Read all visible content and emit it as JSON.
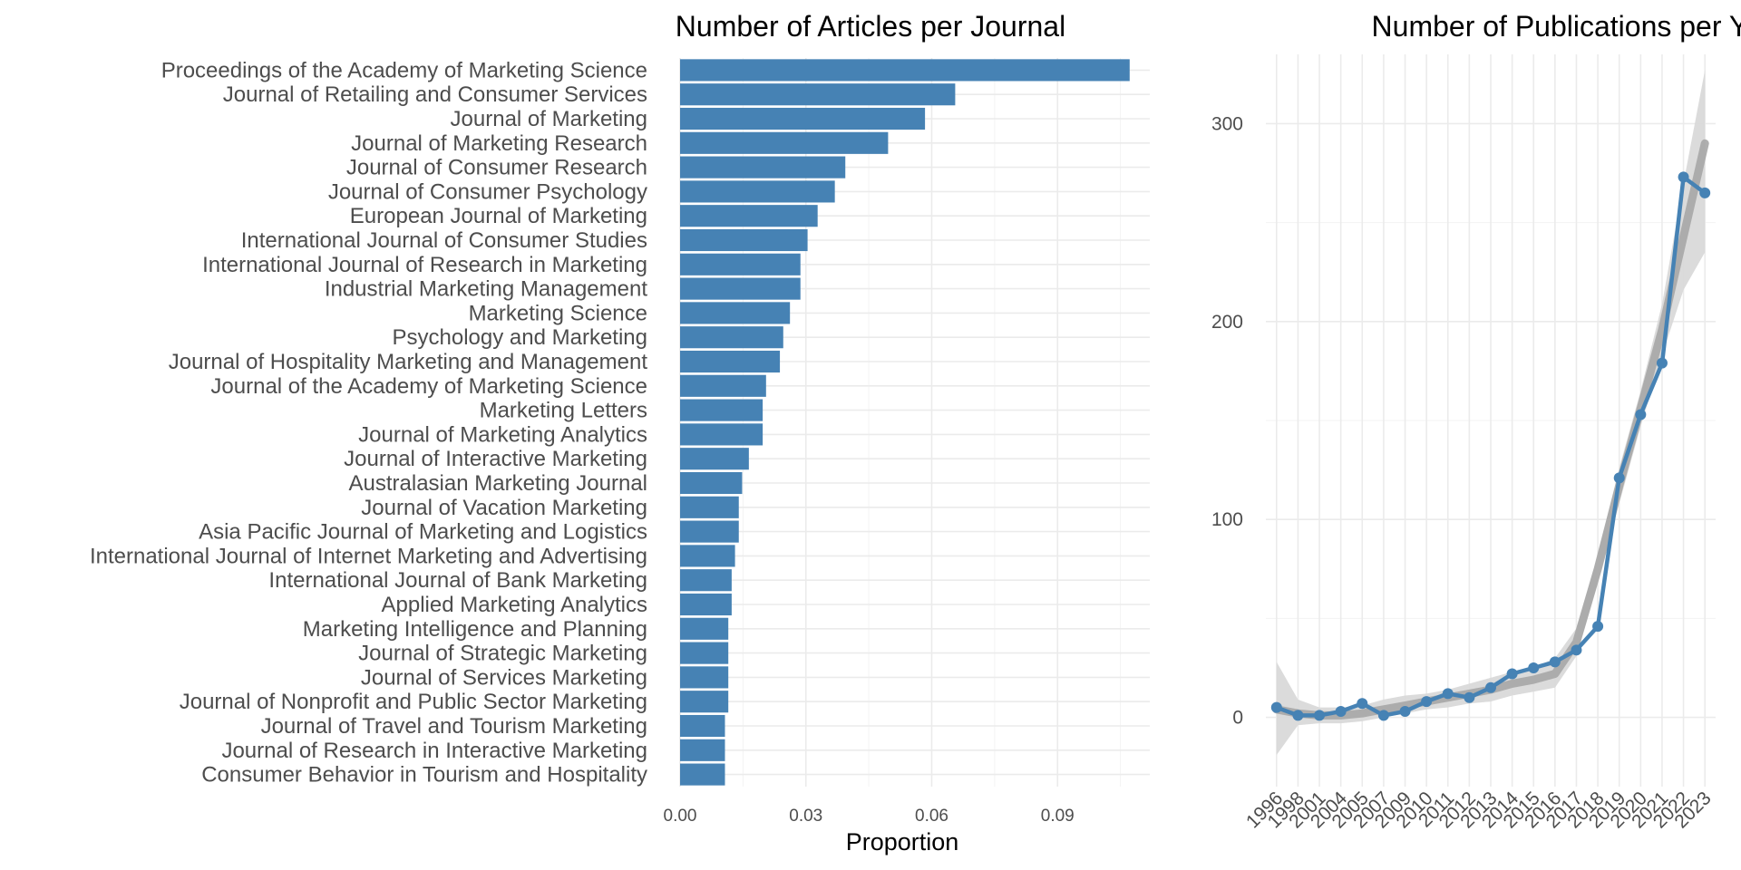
{
  "chart_data": [
    {
      "type": "bar",
      "orientation": "horizontal",
      "title": "Number of Articles per Journal",
      "xlabel": "Proportion",
      "ylabel": "",
      "xlim": [
        0,
        0.112
      ],
      "xticks": [
        "0.00",
        "0.03",
        "0.06",
        "0.09"
      ],
      "xtick_values": [
        0,
        0.03,
        0.06,
        0.09
      ],
      "grid": true,
      "bar_color": "#4682b4",
      "categories": [
        "Proceedings of the Academy of Marketing Science",
        "Journal of Retailing and Consumer Services",
        "Journal of Marketing",
        "Journal of Marketing Research",
        "Journal of Consumer Research",
        "Journal of Consumer Psychology",
        "European Journal of Marketing",
        "International Journal of Consumer Studies",
        "International Journal of Research in Marketing",
        "Industrial Marketing Management",
        "Marketing Science",
        "Psychology and Marketing",
        "Journal of Hospitality Marketing and Management",
        "Journal of the Academy of Marketing Science",
        "Marketing Letters",
        "Journal of Marketing Analytics",
        "Journal of Interactive Marketing",
        "Australasian Marketing Journal",
        "Journal of Vacation Marketing",
        "Asia Pacific Journal of Marketing and Logistics",
        "International Journal of Internet Marketing and Advertising",
        "International Journal of Bank Marketing",
        "Applied Marketing Analytics",
        "Marketing Intelligence and Planning",
        "Journal of Strategic Marketing",
        "Journal of Services Marketing",
        "Journal of Nonprofit and Public Sector Marketing",
        "Journal of Travel and Tourism Marketing",
        "Journal of Research in Interactive Marketing",
        "Consumer Behavior in Tourism and Hospitality"
      ],
      "values": [
        0.1072,
        0.0656,
        0.0584,
        0.0496,
        0.0394,
        0.0369,
        0.0328,
        0.0304,
        0.0287,
        0.0287,
        0.0262,
        0.0246,
        0.0238,
        0.0205,
        0.0197,
        0.0197,
        0.0164,
        0.0148,
        0.014,
        0.014,
        0.0131,
        0.0123,
        0.0123,
        0.0115,
        0.0115,
        0.0115,
        0.0115,
        0.0107,
        0.0107,
        0.0107
      ]
    },
    {
      "type": "line",
      "title": "Number of Publications per Year",
      "xlabel": "",
      "ylabel": "",
      "ylim": [
        -35,
        335
      ],
      "yticks": [
        "0",
        "100",
        "200",
        "300"
      ],
      "ytick_values": [
        0,
        100,
        200,
        300
      ],
      "grid": true,
      "line_color": "#4682b4",
      "smooth_color": "#a6a6a6",
      "band_color": "#d9d9d9",
      "x": [
        "1996",
        "1998",
        "2001",
        "2004",
        "2005",
        "2007",
        "2009",
        "2010",
        "2011",
        "2012",
        "2013",
        "2014",
        "2015",
        "2016",
        "2017",
        "2018",
        "2019",
        "2020",
        "2021",
        "2022",
        "2023"
      ],
      "series": [
        {
          "values": [
            5,
            1,
            1,
            3,
            7,
            1,
            3,
            8,
            12,
            10,
            15,
            22,
            25,
            28,
            34,
            46,
            121,
            153,
            179,
            273,
            265
          ]
        }
      ],
      "smooth": [
        4,
        2,
        1,
        1,
        2,
        4,
        6,
        8,
        10,
        12,
        14,
        17,
        19,
        22,
        38,
        75,
        117,
        156,
        196,
        243,
        290
      ],
      "band_lower": [
        -19,
        -4,
        -3,
        -3,
        -2,
        0,
        2,
        4,
        5,
        7,
        8,
        11,
        13,
        15,
        31,
        68,
        108,
        147,
        183,
        216,
        235
      ],
      "band_upper": [
        28,
        9,
        5,
        5,
        6,
        9,
        11,
        12,
        14,
        17,
        20,
        23,
        25,
        30,
        45,
        82,
        126,
        165,
        209,
        270,
        327
      ]
    }
  ]
}
